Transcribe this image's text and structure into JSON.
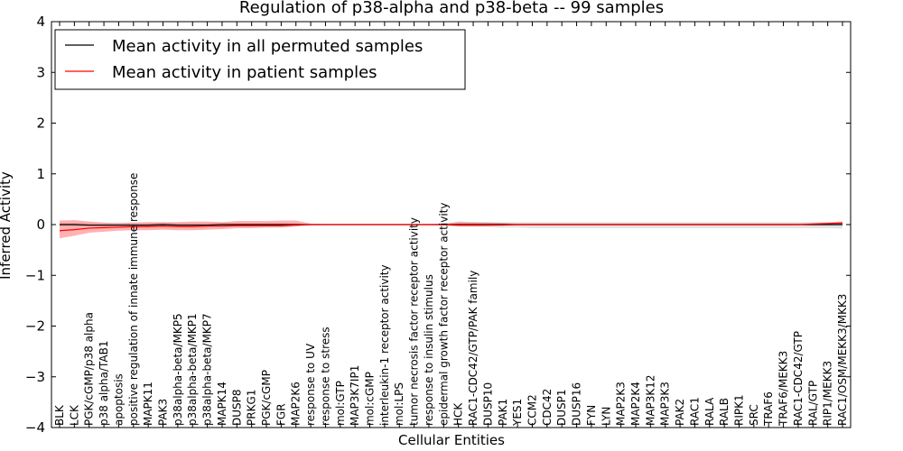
{
  "chart_data": {
    "type": "line",
    "title": "Regulation of p38-alpha and p38-beta -- 99 samples",
    "xlabel": "Cellular Entities",
    "ylabel": "Inferred Activity",
    "ylim": [
      -4,
      4
    ],
    "yticks": [
      4,
      3,
      2,
      1,
      0,
      -1,
      -2,
      -3,
      -4
    ],
    "ytick_labels": [
      "4",
      "3",
      "2",
      "1",
      "0",
      "−1",
      "−2",
      "−3",
      "−4"
    ],
    "grid": false,
    "legend_position": "top-left",
    "categories": [
      "BLK",
      "LCK",
      "PGK/cGMP/p38 alpha",
      "p38 alpha/TAB1",
      "apoptosis",
      "positive regulation of innate immune response",
      "MAPK11",
      "PAK3",
      "p38alpha-beta/MKP5",
      "p38alpha-beta/MKP1",
      "p38alpha-beta/MKP7",
      "MAPK14",
      "DUSP8",
      "PRKG1",
      "PGK/cGMP",
      "FGR",
      "MAP2K6",
      "response to UV",
      "response to stress",
      "mol:GTP",
      "MAP3K7IP1",
      "mol:cGMP",
      "interleukin-1 receptor activity",
      "mol:LPS",
      "tumor necrosis factor receptor activity",
      "response to insulin stimulus",
      "epidermal growth factor receptor activity",
      "HCK",
      "RAC1-CDC42/GTP/PAK family",
      "DUSP10",
      "PAK1",
      "YES1",
      "CCM2",
      "CDC42",
      "DUSP1",
      "DUSP16",
      "FYN",
      "LYN",
      "MAP2K3",
      "MAP2K4",
      "MAP3K12",
      "MAP3K3",
      "PAK2",
      "RAC1",
      "RALA",
      "RALB",
      "RIPK1",
      "SRC",
      "TRAF6",
      "TRAF6/MEKK3",
      "RAC1-CDC42/GTP",
      "RAL/GTP",
      "RIP1/MEKK3",
      "RAC1/OSM/MEKK3/MKK3"
    ],
    "series": [
      {
        "name": "Mean activity in all permuted samples",
        "color": "#000000",
        "values": [
          0.0,
          0.0,
          -0.01,
          -0.01,
          -0.01,
          -0.01,
          -0.01,
          0.0,
          -0.01,
          -0.01,
          -0.01,
          0.0,
          0.0,
          0.0,
          0.0,
          0.0,
          0.0,
          0.0,
          0.0,
          0.0,
          0.0,
          0.0,
          0.0,
          0.0,
          0.0,
          0.0,
          0.0,
          0.0,
          0.0,
          0.0,
          0.0,
          0.0,
          0.0,
          0.0,
          0.0,
          0.0,
          0.0,
          0.0,
          0.0,
          0.0,
          0.0,
          0.0,
          0.0,
          0.0,
          0.0,
          0.0,
          0.0,
          0.0,
          0.0,
          0.0,
          0.0,
          0.0,
          0.0,
          0.0
        ],
        "band_lower": [
          -0.03,
          -0.03,
          -0.04,
          -0.04,
          -0.04,
          -0.04,
          -0.04,
          -0.03,
          -0.04,
          -0.04,
          -0.04,
          -0.03,
          -0.03,
          -0.03,
          -0.03,
          -0.03,
          -0.02,
          -0.01,
          -0.01,
          -0.01,
          -0.01,
          -0.01,
          -0.01,
          -0.01,
          -0.01,
          -0.01,
          -0.02,
          -0.03,
          -0.04,
          -0.05,
          -0.06,
          -0.06,
          -0.07,
          -0.07,
          -0.07,
          -0.07,
          -0.07,
          -0.07,
          -0.07,
          -0.07,
          -0.07,
          -0.07,
          -0.07,
          -0.07,
          -0.07,
          -0.07,
          -0.07,
          -0.07,
          -0.07,
          -0.07,
          -0.07,
          -0.07,
          -0.07,
          -0.08
        ],
        "band_upper": [
          0.03,
          0.03,
          0.03,
          0.03,
          0.03,
          0.03,
          0.03,
          0.03,
          0.03,
          0.03,
          0.03,
          0.03,
          0.03,
          0.03,
          0.03,
          0.03,
          0.02,
          0.01,
          0.01,
          0.01,
          0.01,
          0.01,
          0.01,
          0.01,
          0.01,
          0.01,
          0.02,
          0.03,
          0.04,
          0.05,
          0.05,
          0.05,
          0.05,
          0.05,
          0.05,
          0.05,
          0.05,
          0.05,
          0.05,
          0.05,
          0.05,
          0.05,
          0.05,
          0.05,
          0.05,
          0.05,
          0.05,
          0.05,
          0.05,
          0.05,
          0.05,
          0.05,
          0.05,
          0.06
        ]
      },
      {
        "name": "Mean activity in patient samples",
        "color": "#ff0000",
        "values": [
          -0.12,
          -0.1,
          -0.07,
          -0.06,
          -0.05,
          -0.04,
          -0.04,
          -0.03,
          -0.04,
          -0.04,
          -0.03,
          -0.03,
          -0.02,
          -0.02,
          -0.02,
          -0.02,
          -0.01,
          0.0,
          0.0,
          0.0,
          0.0,
          0.0,
          0.0,
          0.0,
          0.0,
          0.0,
          0.0,
          -0.01,
          -0.01,
          -0.01,
          -0.01,
          0.0,
          0.0,
          0.0,
          0.0,
          0.0,
          0.0,
          0.0,
          0.0,
          0.0,
          0.0,
          0.0,
          0.0,
          0.0,
          0.0,
          0.0,
          0.0,
          0.0,
          0.0,
          0.0,
          0.0,
          0.01,
          0.02,
          0.03
        ],
        "band_lower": [
          -0.27,
          -0.22,
          -0.16,
          -0.14,
          -0.12,
          -0.11,
          -0.11,
          -0.1,
          -0.11,
          -0.11,
          -0.1,
          -0.09,
          -0.07,
          -0.07,
          -0.06,
          -0.06,
          -0.04,
          -0.01,
          -0.01,
          -0.01,
          -0.01,
          -0.01,
          -0.01,
          -0.01,
          -0.01,
          -0.01,
          -0.01,
          -0.04,
          -0.04,
          -0.03,
          -0.02,
          -0.01,
          -0.01,
          -0.01,
          -0.01,
          -0.01,
          -0.01,
          -0.01,
          -0.01,
          -0.01,
          -0.01,
          -0.01,
          -0.01,
          -0.01,
          -0.01,
          -0.01,
          -0.01,
          -0.01,
          -0.01,
          -0.01,
          -0.01,
          -0.01,
          0.0,
          0.0
        ],
        "band_upper": [
          0.08,
          0.09,
          0.06,
          0.04,
          0.03,
          0.04,
          0.05,
          0.05,
          0.05,
          0.06,
          0.06,
          0.05,
          0.07,
          0.07,
          0.07,
          0.08,
          0.08,
          0.02,
          0.01,
          0.01,
          0.01,
          0.01,
          0.01,
          0.01,
          0.01,
          0.01,
          0.01,
          0.06,
          0.05,
          0.04,
          0.03,
          0.02,
          0.02,
          0.02,
          0.02,
          0.02,
          0.02,
          0.02,
          0.02,
          0.02,
          0.02,
          0.02,
          0.02,
          0.02,
          0.02,
          0.02,
          0.02,
          0.02,
          0.02,
          0.02,
          0.02,
          0.03,
          0.04,
          0.06
        ]
      }
    ]
  }
}
